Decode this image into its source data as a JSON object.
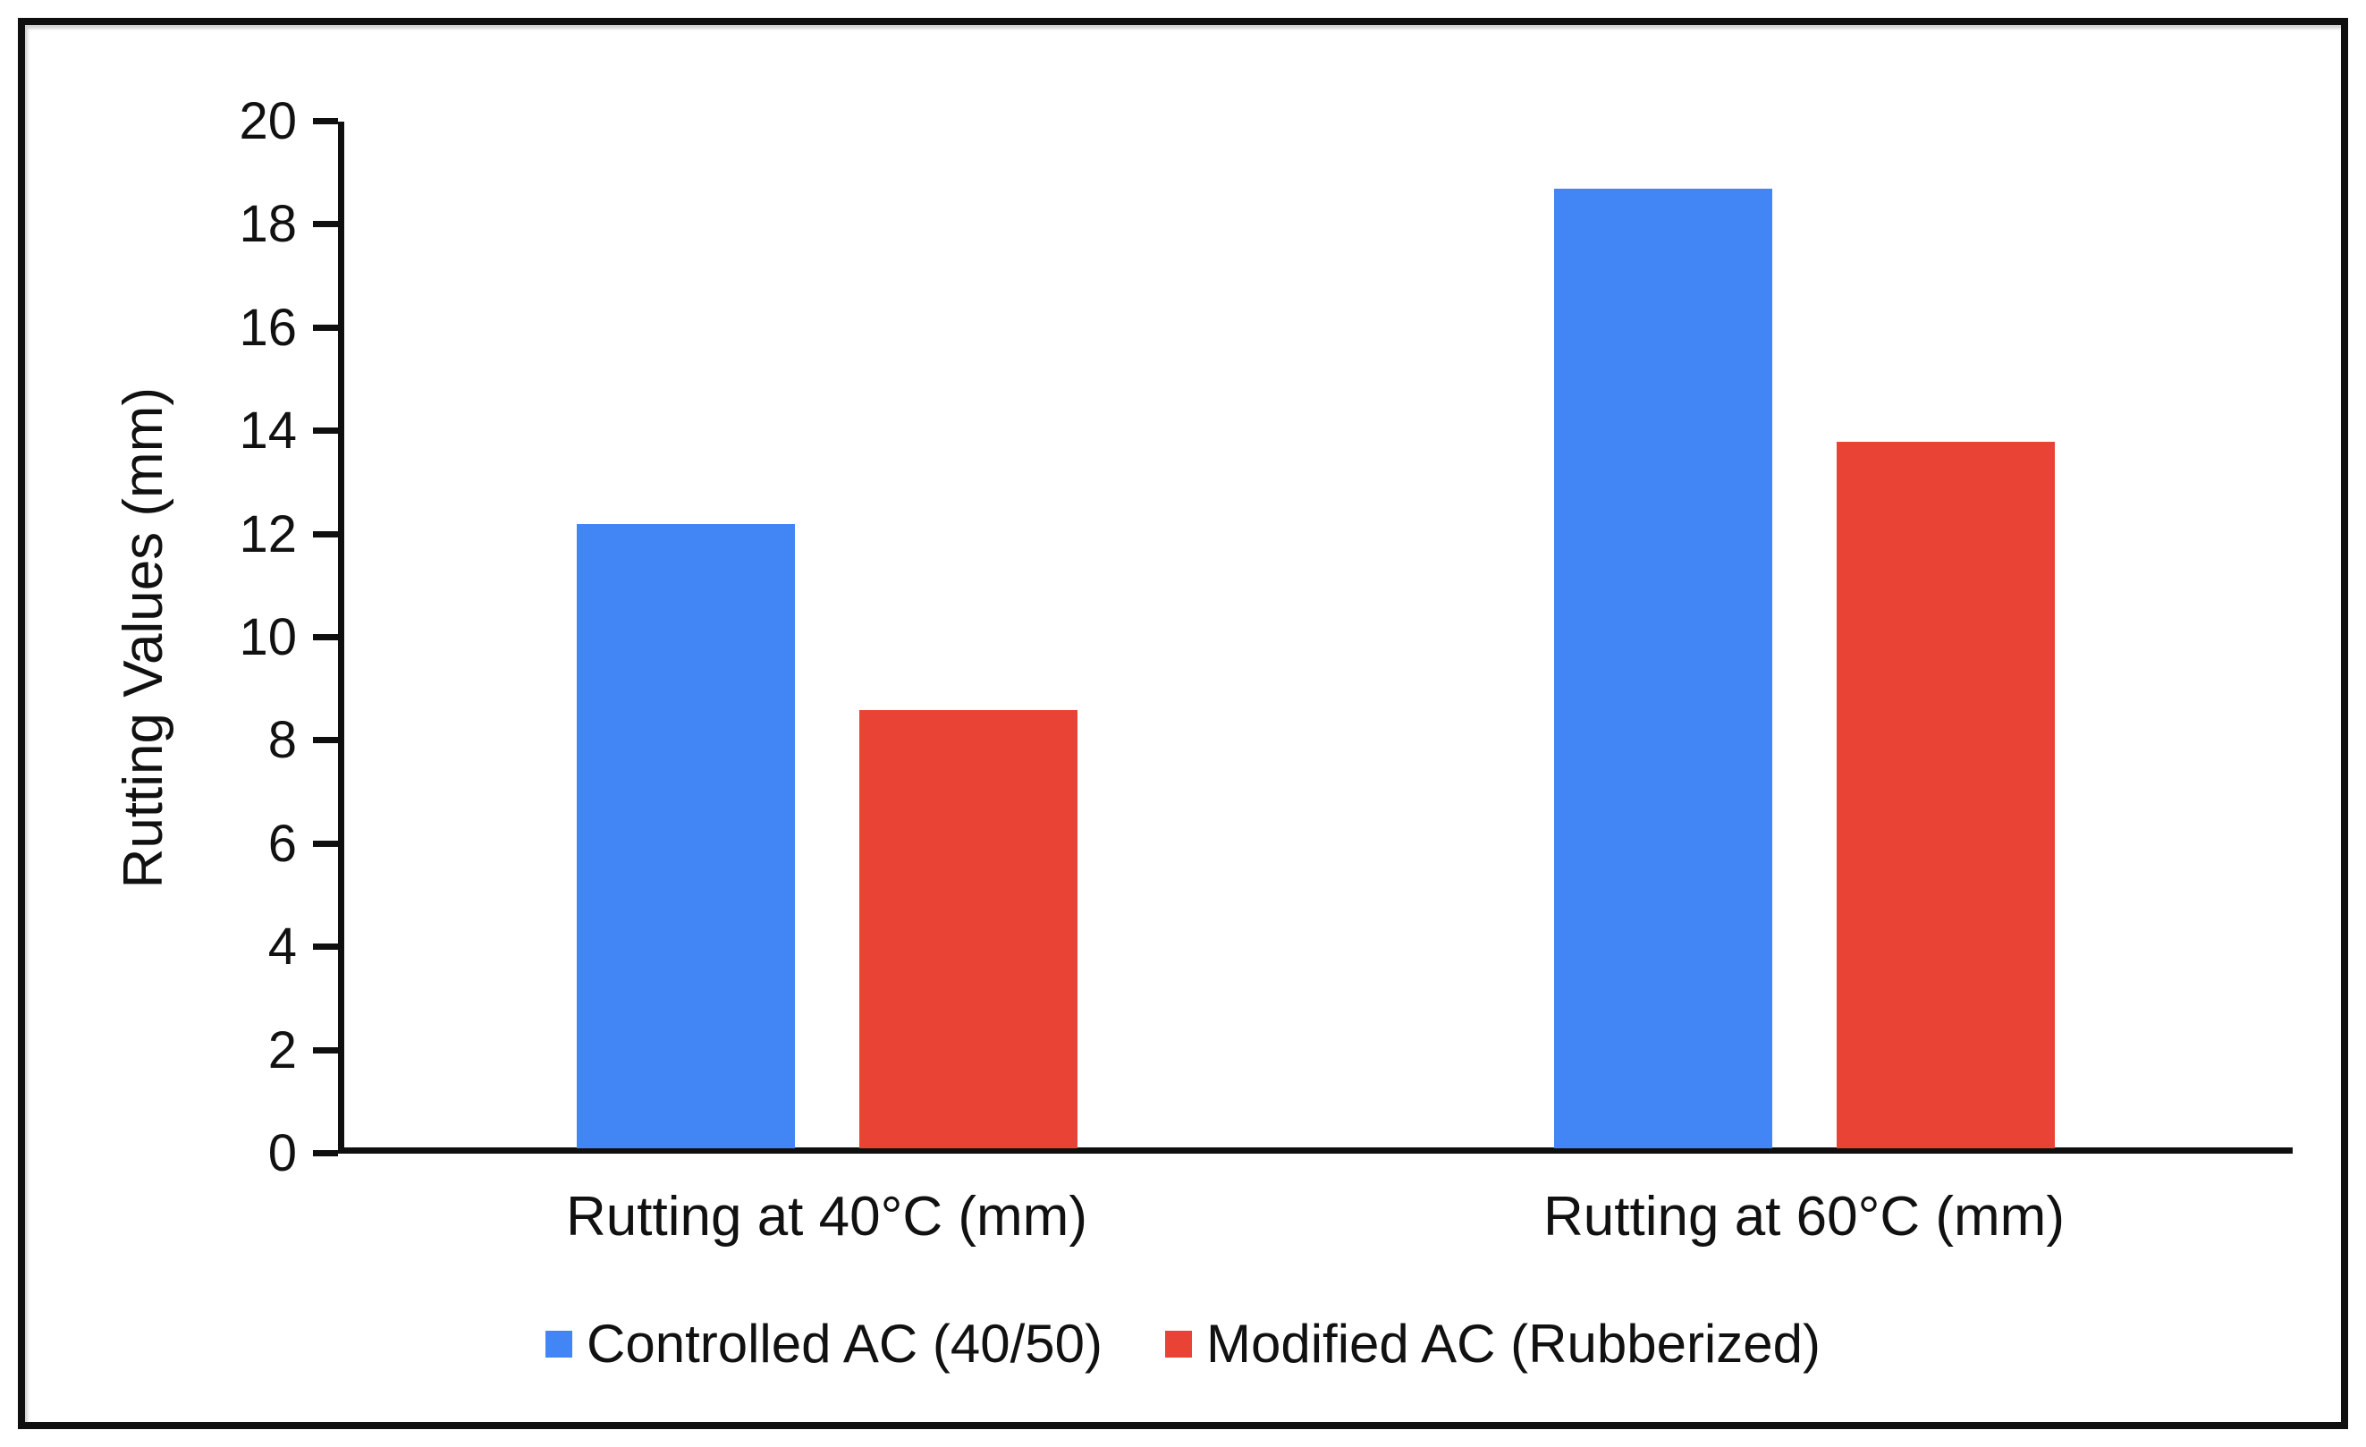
{
  "page": {
    "background": "#ffffff",
    "frame_border_color": "#0f0f0f"
  },
  "chart_data": {
    "type": "bar",
    "title": "",
    "categories": [
      "Rutting at 40°C (mm)",
      "Rutting at 60°C (mm)"
    ],
    "series": [
      {
        "name": "Controlled AC (40/50)",
        "color": "#4285F4",
        "values": [
          12.1,
          18.6
        ]
      },
      {
        "name": "Modified AC (Rubberized)",
        "color": "#E94335",
        "values": [
          8.5,
          13.7
        ]
      }
    ],
    "xlabel": "",
    "ylabel": "Rutting Values (mm)",
    "ylim": [
      0,
      20
    ],
    "yticks": [
      0,
      2,
      4,
      6,
      8,
      10,
      12,
      14,
      16,
      18,
      20
    ],
    "grid": false,
    "legend_position": "bottom"
  }
}
